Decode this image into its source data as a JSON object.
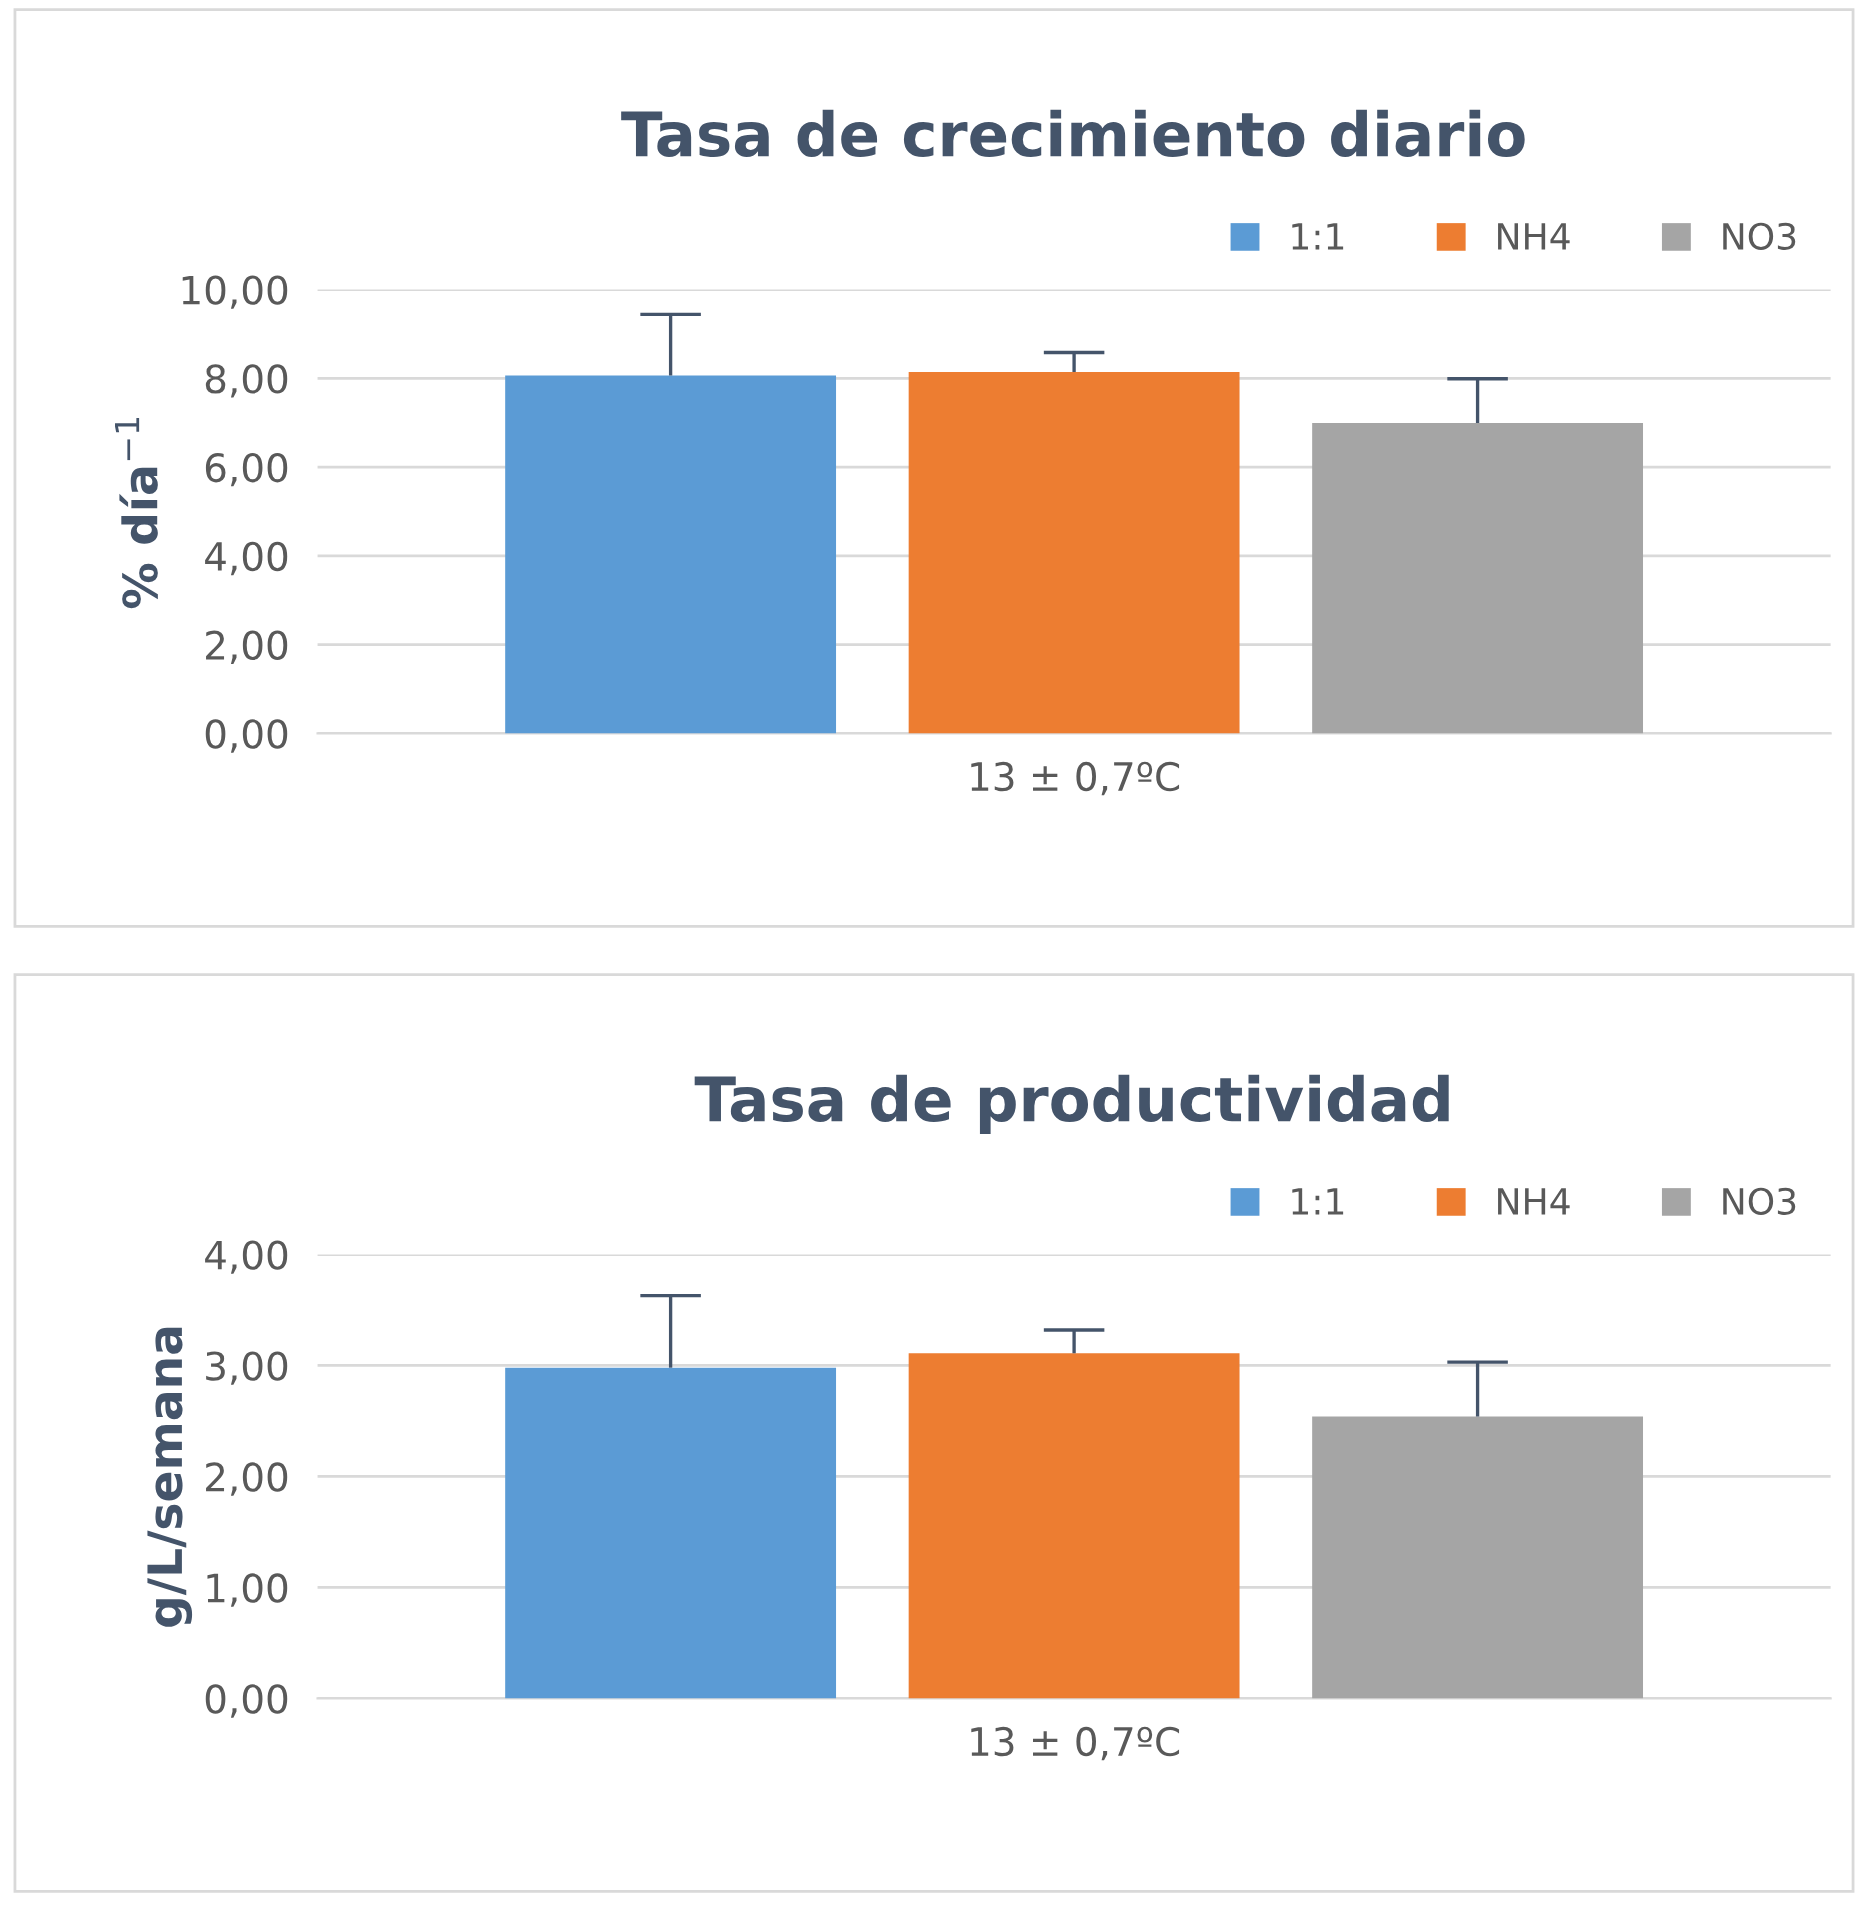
{
  "chart_data": [
    {
      "type": "bar",
      "title": "Tasa de crecimiento diario",
      "ylabel": "% día$^{−1}$",
      "categories": [
        "13 ± 0,7ºC"
      ],
      "series": [
        {
          "name": "1:1",
          "color": "#5b9bd5",
          "values": [
            8.06
          ],
          "errors": [
            [
              8.06,
              9.44
            ]
          ]
        },
        {
          "name": "NH4",
          "color": "#ed7d31",
          "values": [
            8.14
          ],
          "errors": [
            [
              8.14,
              8.58
            ]
          ]
        },
        {
          "name": "NO3",
          "color": "#a5a5a5",
          "values": [
            6.99
          ],
          "errors": [
            [
              6.99,
              7.99
            ]
          ]
        }
      ],
      "ylim": [
        0,
        10
      ],
      "yticks": [
        {
          "value": 0,
          "label": "0,00"
        },
        {
          "value": 2,
          "label": "2,00"
        },
        {
          "value": 4,
          "label": "4,00"
        },
        {
          "value": 6,
          "label": "6,00"
        },
        {
          "value": 8,
          "label": "8,00"
        },
        {
          "value": 10,
          "label": "10,00"
        }
      ],
      "grid": "y",
      "legend": "top right"
    },
    {
      "type": "bar",
      "title": "Tasa de productividad",
      "ylabel": "g/L/semana",
      "categories": [
        "13 ± 0,7ºC"
      ],
      "series": [
        {
          "name": "1:1",
          "color": "#5b9bd5",
          "values": [
            2.98
          ],
          "errors": [
            [
              2.98,
              3.63
            ]
          ]
        },
        {
          "name": "NH4",
          "color": "#ed7d31",
          "values": [
            3.11
          ],
          "errors": [
            [
              3.11,
              3.32
            ]
          ]
        },
        {
          "name": "NO3",
          "color": "#a5a5a5",
          "values": [
            2.54
          ],
          "errors": [
            [
              2.54,
              3.03
            ]
          ]
        }
      ],
      "ylim": [
        0,
        4
      ],
      "yticks": [
        {
          "value": 0,
          "label": "0,00"
        },
        {
          "value": 1,
          "label": "1,00"
        },
        {
          "value": 2,
          "label": "2,00"
        },
        {
          "value": 3,
          "label": "3,00"
        },
        {
          "value": 4,
          "label": "4,00"
        }
      ],
      "grid": "y",
      "legend": "top right"
    }
  ]
}
